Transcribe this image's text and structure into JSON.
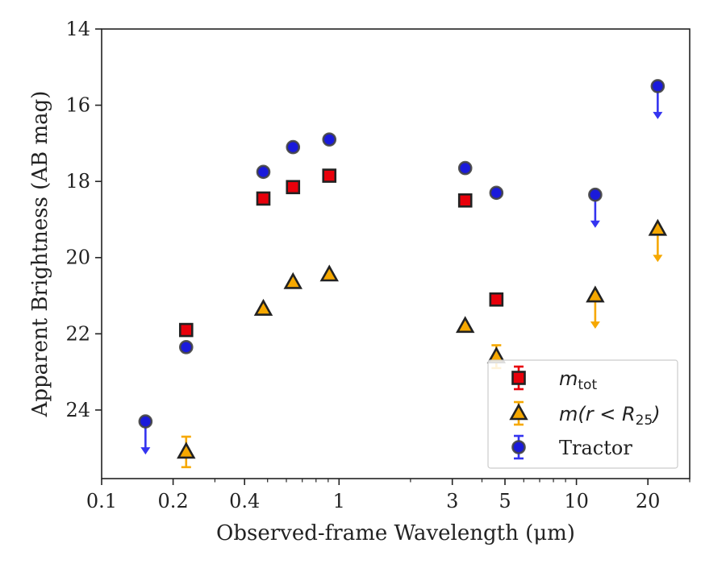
{
  "chart_data": {
    "type": "scatter",
    "xlabel": "Observed-frame Wavelength (μm)",
    "ylabel": "Apparent Brightness (AB mag)",
    "xscale": "log",
    "xlim": [
      0.1,
      30
    ],
    "ylim": [
      25.8,
      14
    ],
    "y_inverted": true,
    "x_ticks": [
      {
        "value": 0.1,
        "label": "0.1"
      },
      {
        "value": 0.2,
        "label": "0.2"
      },
      {
        "value": 0.4,
        "label": "0.4"
      },
      {
        "value": 1,
        "label": "1"
      },
      {
        "value": 3,
        "label": "3"
      },
      {
        "value": 5,
        "label": "5"
      },
      {
        "value": 10,
        "label": "10"
      },
      {
        "value": 20,
        "label": "20"
      }
    ],
    "y_ticks": [
      {
        "value": 14,
        "label": "14"
      },
      {
        "value": 16,
        "label": "16"
      },
      {
        "value": 18,
        "label": "18"
      },
      {
        "value": 20,
        "label": "20"
      },
      {
        "value": 22,
        "label": "22"
      },
      {
        "value": 24,
        "label": "24"
      }
    ],
    "legend_position": "lower-right",
    "colors": {
      "mtot": "#e8000b",
      "r25": "#f6a800",
      "tractor": "#1a1adb",
      "edge": "#222222",
      "tractor_arrow": "#3434f0"
    },
    "series": [
      {
        "key": "mtot",
        "name": "m_tot",
        "label_main": "m",
        "label_sub": "tot",
        "marker": "square",
        "points": [
          {
            "x": 0.227,
            "y": 21.9
          },
          {
            "x": 0.48,
            "y": 18.45
          },
          {
            "x": 0.64,
            "y": 18.15
          },
          {
            "x": 0.91,
            "y": 17.85
          },
          {
            "x": 3.4,
            "y": 18.5
          },
          {
            "x": 4.6,
            "y": 21.1
          }
        ]
      },
      {
        "key": "r25",
        "name": "m(r < R25)",
        "label_main": "m(r < R",
        "label_sub": "25",
        "label_end": ")",
        "marker": "triangle",
        "points": [
          {
            "x": 0.227,
            "y": 25.1,
            "err": 0.4
          },
          {
            "x": 0.48,
            "y": 21.35
          },
          {
            "x": 0.64,
            "y": 20.65
          },
          {
            "x": 0.91,
            "y": 20.45
          },
          {
            "x": 3.4,
            "y": 21.8
          },
          {
            "x": 4.6,
            "y": 22.6,
            "err": 0.3
          },
          {
            "x": 12.0,
            "y": 21.0,
            "upper_limit": true
          },
          {
            "x": 22.0,
            "y": 19.25,
            "upper_limit": true
          }
        ]
      },
      {
        "key": "tractor",
        "name": "Tractor",
        "label_main": "Tractor",
        "marker": "circle",
        "points": [
          {
            "x": 0.153,
            "y": 24.3,
            "upper_limit": true
          },
          {
            "x": 0.227,
            "y": 22.35
          },
          {
            "x": 0.48,
            "y": 17.75
          },
          {
            "x": 0.64,
            "y": 17.1
          },
          {
            "x": 0.91,
            "y": 16.9
          },
          {
            "x": 3.4,
            "y": 17.65
          },
          {
            "x": 4.6,
            "y": 18.3
          },
          {
            "x": 12.0,
            "y": 18.35,
            "upper_limit": true
          },
          {
            "x": 22.0,
            "y": 15.5,
            "upper_limit": true
          }
        ]
      }
    ]
  }
}
